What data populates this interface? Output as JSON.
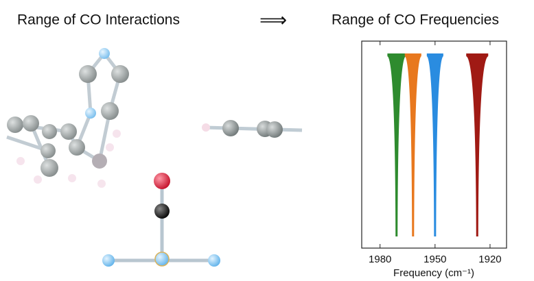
{
  "left_title": "Range of CO Interactions",
  "chart_data": {
    "type": "spectrum",
    "title": "Range of CO Frequencies",
    "x_label": "Frequency (cm⁻¹)",
    "xlim": [
      1990,
      1911
    ],
    "xticks": [
      1980,
      1950,
      1920
    ],
    "peaks": [
      {
        "color": "#2e8b2e",
        "center": 1971,
        "spread": 5
      },
      {
        "color": "#e8781e",
        "center": 1962,
        "spread": 4.5
      },
      {
        "color": "#2a8ce0",
        "center": 1950,
        "spread": 4.5
      },
      {
        "color": "#a01a14",
        "center": 1927,
        "spread": 6
      }
    ]
  }
}
